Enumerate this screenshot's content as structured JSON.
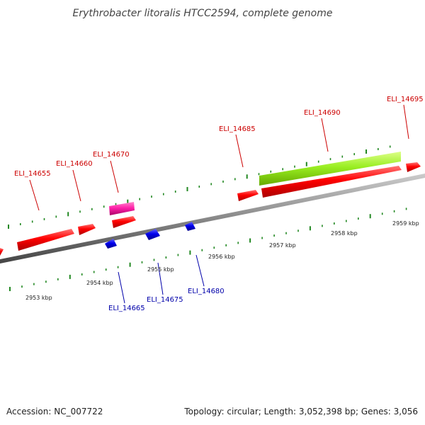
{
  "title": "Erythrobacter litoralis HTCC2594, complete genome",
  "footer": {
    "accession": "Accession: NC_007722",
    "summary": "Topology: circular; Length: 3,052,398 bp; Genes: 3,056"
  },
  "colors": {
    "forward_gene": "#ff0000",
    "reverse_gene": "#0000ff",
    "rna_gene": "#ff33aa",
    "cds_track": "#99ee22",
    "backbone": "#888888",
    "tick": "#228822",
    "forward_label": "#cc0000",
    "reverse_label": "#0000aa"
  },
  "scale": {
    "unit": "kbp",
    "labels": [
      "2953 kbp",
      "2954 kbp",
      "2955 kbp",
      "2956 kbp",
      "2957 kbp",
      "2958 kbp",
      "2959 kbp"
    ]
  },
  "gene_labels": {
    "forward": [
      "ELI_14655",
      "ELI_14660",
      "ELI_14670",
      "ELI_14685",
      "ELI_14690",
      "ELI_14695"
    ],
    "reverse": [
      "ELI_14665",
      "ELI_14675",
      "ELI_14680"
    ]
  }
}
